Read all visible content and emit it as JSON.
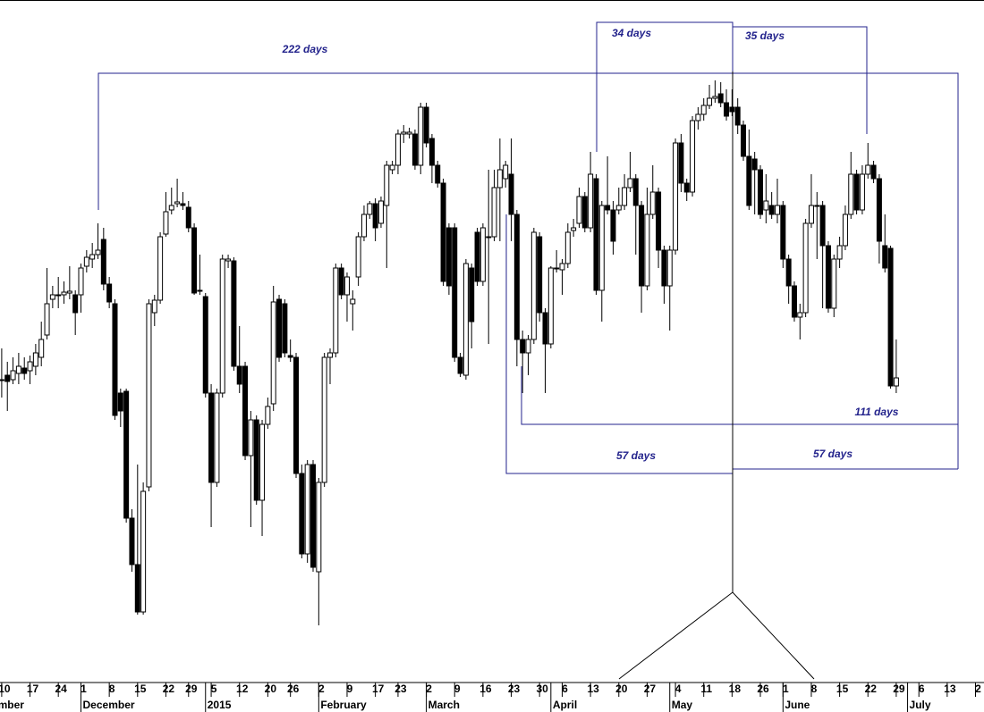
{
  "chart_data": {
    "type": "candlestick",
    "annotations": [
      "222 days",
      "34 days",
      "35 days",
      "111 days",
      "57 days",
      "57 days"
    ],
    "color_up": "#ffffff",
    "color_down": "#000000",
    "annotation_color": "#23238c",
    "xlim": [
      -0.3,
      173.5
    ],
    "ylim": [
      38,
      800
    ],
    "xticks": [
      {
        "value": 0,
        "label": "10"
      },
      {
        "value": 5,
        "label": "17"
      },
      {
        "value": 10,
        "label": "24"
      },
      {
        "value": 14,
        "label": "1"
      },
      {
        "value": 19,
        "label": "8"
      },
      {
        "value": 24,
        "label": "15"
      },
      {
        "value": 29,
        "label": "22"
      },
      {
        "value": 33,
        "label": "29"
      },
      {
        "value": 37,
        "label": "5"
      },
      {
        "value": 42,
        "label": "12"
      },
      {
        "value": 47,
        "label": "20"
      },
      {
        "value": 51,
        "label": "26"
      },
      {
        "value": 56,
        "label": "2"
      },
      {
        "value": 61,
        "label": "9"
      },
      {
        "value": 66,
        "label": "17"
      },
      {
        "value": 70,
        "label": "23"
      },
      {
        "value": 75,
        "label": "2"
      },
      {
        "value": 80,
        "label": "9"
      },
      {
        "value": 85,
        "label": "16"
      },
      {
        "value": 90,
        "label": "23"
      },
      {
        "value": 95,
        "label": "30"
      },
      {
        "value": 99,
        "label": "6"
      },
      {
        "value": 104,
        "label": "13"
      },
      {
        "value": 109,
        "label": "20"
      },
      {
        "value": 114,
        "label": "27"
      },
      {
        "value": 119,
        "label": "4"
      },
      {
        "value": 124,
        "label": "11"
      },
      {
        "value": 129,
        "label": "18"
      },
      {
        "value": 134,
        "label": "26"
      },
      {
        "value": 138,
        "label": "1"
      },
      {
        "value": 143,
        "label": "8"
      },
      {
        "value": 148,
        "label": "15"
      },
      {
        "value": 153,
        "label": "22"
      },
      {
        "value": 158,
        "label": "29"
      },
      {
        "value": 162,
        "label": "6"
      },
      {
        "value": 167,
        "label": "13"
      },
      {
        "value": 172,
        "label": "2"
      }
    ],
    "month_ticks": [
      {
        "value": -1,
        "label": "mber"
      },
      {
        "value": 14,
        "label": "December"
      },
      {
        "value": 36,
        "label": "2015"
      },
      {
        "value": 56,
        "label": "February"
      },
      {
        "value": 75,
        "label": "March"
      },
      {
        "value": 97,
        "label": "April"
      },
      {
        "value": 118,
        "label": "May"
      },
      {
        "value": 138,
        "label": "June"
      },
      {
        "value": 160,
        "label": "July"
      }
    ],
    "open": [
      375,
      380,
      375,
      382,
      388,
      385,
      390,
      400,
      425,
      465,
      470,
      470,
      472,
      470,
      470,
      502,
      510,
      515,
      532,
      482,
      460,
      360,
      362,
      220,
      168,
      115,
      255,
      450,
      464,
      538,
      565,
      572,
      572,
      568,
      545,
      475,
      468,
      360,
      260,
      360,
      508,
      508,
      390,
      390,
      290,
      330,
      240,
      325,
      348,
      465,
      460,
      402,
      400,
      270,
      180,
      280,
      160,
      260,
      400,
      405,
      500,
      470,
      460,
      490,
      535,
      560,
      572,
      550,
      570,
      610,
      615,
      650,
      650,
      650,
      615,
      680,
      645,
      615,
      595,
      545,
      545,
      400,
      380,
      500,
      540,
      485,
      535,
      535,
      590,
      600,
      605,
      560,
      420,
      405,
      420,
      535,
      450,
      415,
      500,
      498,
      505,
      542,
      550,
      580,
      545,
      600,
      475,
      570,
      565,
      565,
      570,
      590,
      600,
      570,
      480,
      560,
      585,
      520,
      480,
      520,
      640,
      595,
      585,
      665,
      672,
      682,
      690,
      695,
      685,
      680,
      680,
      660,
      625,
      622,
      610,
      565,
      570,
      560,
      570,
      510,
      480,
      445,
      450,
      550,
      570,
      570,
      525,
      455,
      510,
      525,
      560,
      605,
      565,
      605,
      615,
      600,
      525,
      522,
      368
    ],
    "high": [
      410,
      395,
      400,
      405,
      400,
      402,
      415,
      440,
      500,
      480,
      490,
      485,
      502,
      475,
      505,
      520,
      528,
      550,
      545,
      490,
      465,
      365,
      365,
      230,
      280,
      260,
      465,
      470,
      540,
      585,
      590,
      600,
      585,
      575,
      550,
      515,
      472,
      370,
      365,
      515,
      515,
      512,
      435,
      395,
      340,
      335,
      330,
      355,
      480,
      470,
      465,
      420,
      405,
      280,
      285,
      285,
      265,
      405,
      410,
      505,
      505,
      495,
      475,
      540,
      570,
      575,
      578,
      580,
      620,
      620,
      655,
      660,
      657,
      655,
      685,
      685,
      650,
      620,
      600,
      550,
      550,
      405,
      510,
      505,
      545,
      550,
      610,
      610,
      645,
      620,
      645,
      565,
      430,
      425,
      545,
      540,
      455,
      502,
      520,
      510,
      550,
      555,
      590,
      585,
      630,
      605,
      575,
      625,
      575,
      590,
      605,
      630,
      605,
      575,
      590,
      615,
      590,
      525,
      525,
      645,
      650,
      600,
      670,
      680,
      690,
      705,
      710,
      708,
      700,
      700,
      690,
      665,
      655,
      630,
      615,
      605,
      585,
      600,
      575,
      515,
      485,
      460,
      555,
      605,
      585,
      575,
      530,
      515,
      535,
      570,
      630,
      610,
      615,
      640,
      620,
      605,
      560,
      525,
      420
    ],
    "low": [
      355,
      340,
      370,
      370,
      375,
      370,
      380,
      390,
      420,
      455,
      455,
      460,
      465,
      425,
      450,
      495,
      500,
      510,
      475,
      455,
      330,
      322,
      215,
      160,
      112,
      112,
      250,
      435,
      460,
      535,
      560,
      568,
      565,
      540,
      470,
      470,
      355,
      210,
      255,
      355,
      500,
      385,
      360,
      285,
      210,
      235,
      200,
      320,
      340,
      395,
      400,
      395,
      265,
      175,
      170,
      160,
      100,
      255,
      370,
      400,
      465,
      440,
      430,
      480,
      530,
      555,
      530,
      545,
      500,
      605,
      605,
      640,
      645,
      610,
      605,
      635,
      595,
      590,
      480,
      470,
      395,
      378,
      375,
      410,
      480,
      480,
      415,
      530,
      530,
      590,
      530,
      390,
      360,
      380,
      415,
      440,
      360,
      410,
      495,
      470,
      500,
      535,
      545,
      540,
      540,
      470,
      440,
      560,
      515,
      560,
      565,
      585,
      515,
      450,
      475,
      555,
      500,
      460,
      430,
      515,
      585,
      575,
      580,
      655,
      665,
      678,
      685,
      680,
      665,
      670,
      650,
      620,
      565,
      560,
      555,
      550,
      555,
      550,
      500,
      460,
      440,
      420,
      445,
      545,
      510,
      455,
      450,
      445,
      500,
      520,
      555,
      560,
      560,
      600,
      595,
      505,
      495,
      365,
      360
    ],
    "close": [
      375,
      373,
      385,
      390,
      382,
      395,
      405,
      420,
      460,
      470,
      470,
      473,
      474,
      450,
      500,
      512,
      515,
      520,
      482,
      462,
      335,
      340,
      220,
      168,
      115,
      250,
      460,
      464,
      535,
      563,
      570,
      574,
      570,
      545,
      472,
      474,
      360,
      260,
      360,
      510,
      510,
      390,
      370,
      290,
      330,
      240,
      325,
      345,
      462,
      400,
      405,
      400,
      270,
      180,
      280,
      165,
      260,
      400,
      405,
      500,
      470,
      490,
      465,
      535,
      560,
      572,
      545,
      575,
      615,
      615,
      650,
      652,
      652,
      615,
      680,
      640,
      615,
      595,
      485,
      480,
      400,
      382,
      505,
      440,
      485,
      545,
      535,
      590,
      610,
      615,
      560,
      420,
      405,
      420,
      540,
      450,
      415,
      500,
      500,
      505,
      540,
      545,
      580,
      545,
      605,
      475,
      570,
      565,
      530,
      570,
      590,
      600,
      570,
      480,
      560,
      585,
      520,
      480,
      520,
      640,
      595,
      585,
      665,
      672,
      682,
      690,
      692,
      685,
      670,
      675,
      660,
      625,
      570,
      610,
      560,
      575,
      560,
      570,
      510,
      480,
      445,
      450,
      550,
      570,
      570,
      525,
      455,
      510,
      525,
      560,
      605,
      565,
      605,
      615,
      600,
      530,
      500,
      368,
      377
    ]
  }
}
